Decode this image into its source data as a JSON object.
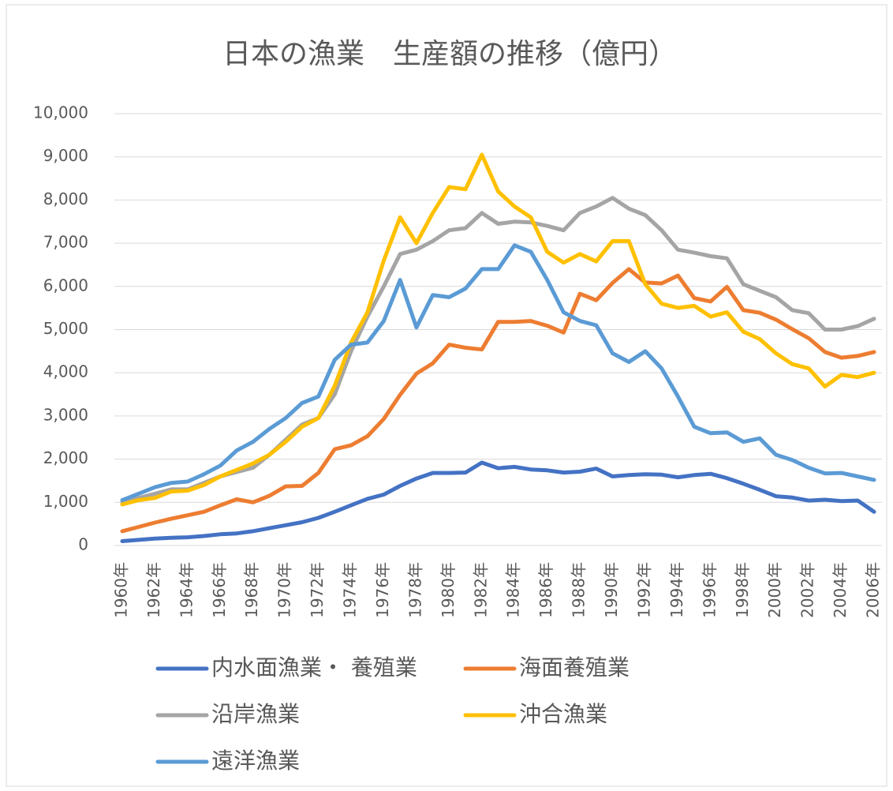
{
  "chart_data": {
    "type": "line",
    "title": "日本の漁業　生産額の推移（億円）",
    "categories": [
      "1960年",
      null,
      "1962年",
      null,
      "1964年",
      null,
      "1966年",
      null,
      "1968年",
      null,
      "1970年",
      null,
      "1972年",
      null,
      "1974年",
      null,
      "1976年",
      null,
      "1978年",
      null,
      "1980年",
      null,
      "1982年",
      null,
      "1984年",
      null,
      "1986年",
      null,
      "1988年",
      null,
      "1990年",
      null,
      "1992年",
      null,
      "1994年",
      null,
      "1996年",
      null,
      "1998年",
      null,
      "2000年",
      null,
      "2002年",
      null,
      "2004年",
      null,
      "2006年"
    ],
    "series": [
      {
        "name": "内水面漁業・ 養殖業",
        "color": "#4472c4",
        "values": [
          100,
          130,
          160,
          180,
          190,
          220,
          260,
          280,
          330,
          400,
          470,
          540,
          640,
          780,
          930,
          1080,
          1180,
          1380,
          1550,
          1680,
          1680,
          1690,
          1920,
          1790,
          1820,
          1760,
          1740,
          1690,
          1710,
          1780,
          1600,
          1630,
          1650,
          1640,
          1580,
          1630,
          1660,
          1560,
          1430,
          1290,
          1140,
          1110,
          1040,
          1060,
          1030,
          1040,
          780
        ]
      },
      {
        "name": "海面養殖業",
        "color": "#ed7d31",
        "values": [
          330,
          430,
          530,
          620,
          700,
          780,
          930,
          1070,
          1000,
          1150,
          1370,
          1380,
          1680,
          2230,
          2320,
          2530,
          2930,
          3490,
          3980,
          4220,
          4650,
          4580,
          4540,
          5180,
          5180,
          5200,
          5090,
          4930,
          5830,
          5680,
          6080,
          6400,
          6090,
          6070,
          6250,
          5730,
          5650,
          5990,
          5450,
          5390,
          5230,
          5010,
          4800,
          4480,
          4350,
          4390,
          4480
        ]
      },
      {
        "name": "沿岸漁業",
        "color": "#a5a5a5",
        "values": [
          1000,
          1100,
          1200,
          1300,
          1300,
          1450,
          1600,
          1700,
          1800,
          2100,
          2450,
          2800,
          2950,
          3500,
          4500,
          5300,
          6000,
          6750,
          6850,
          7050,
          7300,
          7350,
          7700,
          7450,
          7500,
          7480,
          7400,
          7300,
          7700,
          7850,
          8050,
          7800,
          7650,
          7300,
          6850,
          6780,
          6700,
          6650,
          6050,
          5900,
          5750,
          5450,
          5380,
          5000,
          5000,
          5080,
          5250
        ]
      },
      {
        "name": "沖合漁業",
        "color": "#ffc000",
        "values": [
          950,
          1050,
          1100,
          1250,
          1270,
          1400,
          1600,
          1750,
          1900,
          2100,
          2400,
          2750,
          2950,
          3700,
          4700,
          5400,
          6600,
          7600,
          7000,
          7700,
          8300,
          8250,
          9050,
          8200,
          7850,
          7600,
          6800,
          6550,
          6750,
          6580,
          7050,
          7050,
          6050,
          5600,
          5500,
          5550,
          5300,
          5400,
          4950,
          4780,
          4450,
          4200,
          4100,
          3680,
          3950,
          3900,
          4000
        ]
      },
      {
        "name": "遠洋漁業",
        "color": "#5b9bd5",
        "values": [
          1050,
          1200,
          1350,
          1450,
          1480,
          1650,
          1850,
          2200,
          2400,
          2700,
          2950,
          3300,
          3450,
          4300,
          4650,
          4700,
          5200,
          6150,
          5050,
          5800,
          5750,
          5950,
          6400,
          6400,
          6950,
          6800,
          6150,
          5400,
          5200,
          5100,
          4450,
          4250,
          4500,
          4100,
          3450,
          2750,
          2600,
          2620,
          2400,
          2480,
          2100,
          1980,
          1800,
          1670,
          1680,
          1600,
          1520
        ]
      }
    ],
    "ylim": [
      0,
      10000
    ],
    "yticks": [
      0,
      {
        "value": 1000,
        "label": "1,000"
      },
      {
        "value": 2000,
        "label": "2,000"
      },
      {
        "value": 3000,
        "label": "3,000"
      },
      {
        "value": 4000,
        "label": "4,000"
      },
      {
        "value": 5000,
        "label": "5,000"
      },
      {
        "value": 6000,
        "label": "6,000"
      },
      {
        "value": 7000,
        "label": "7,000"
      },
      {
        "value": 8000,
        "label": "8,000"
      },
      {
        "value": 9000,
        "label": "9,000"
      },
      {
        "value": 10000,
        "label": "10,000"
      }
    ],
    "grid": true
  }
}
